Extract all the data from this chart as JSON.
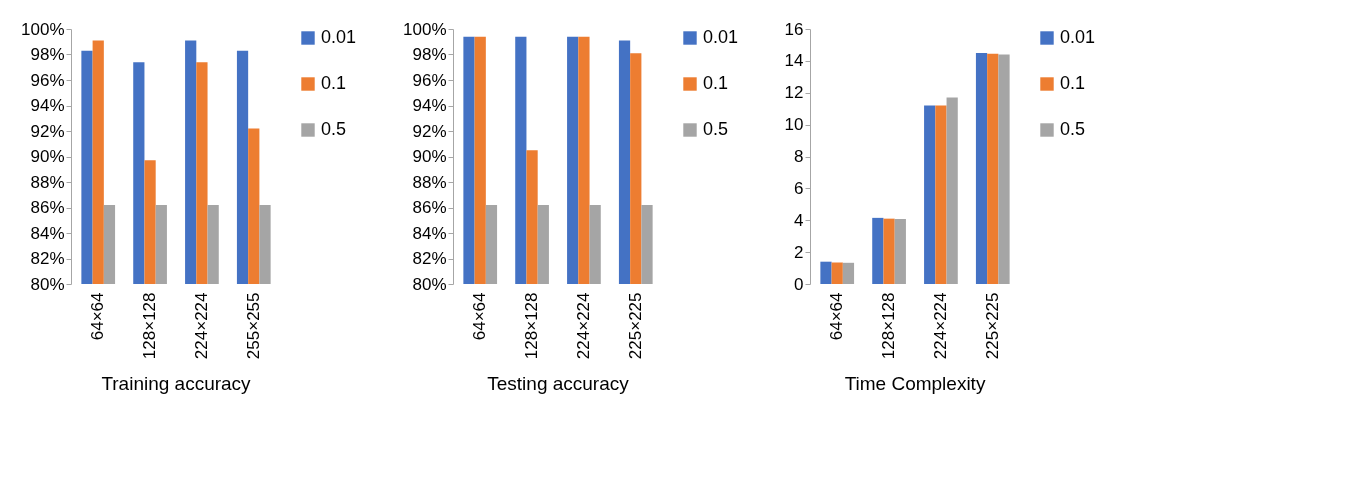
{
  "chart_data": [
    {
      "type": "bar",
      "title": "Training accuracy",
      "categories": [
        "64×64",
        "128×128",
        "224×224",
        "255×255"
      ],
      "series": [
        {
          "name": "0.01",
          "color": "#4472c4",
          "values": [
            98.3,
            97.4,
            99.1,
            98.3
          ]
        },
        {
          "name": "0.1",
          "color": "#ed7d31",
          "values": [
            99.1,
            89.7,
            97.4,
            92.2
          ]
        },
        {
          "name": "0.5",
          "color": "#a5a5a5",
          "values": [
            86.2,
            86.2,
            86.2,
            86.2
          ]
        }
      ],
      "ylim": [
        80,
        100
      ],
      "yticks": [
        {
          "value": 80,
          "label": "80%"
        },
        {
          "value": 82,
          "label": "82%"
        },
        {
          "value": 84,
          "label": "84%"
        },
        {
          "value": 86,
          "label": "86%"
        },
        {
          "value": 88,
          "label": "88%"
        },
        {
          "value": 90,
          "label": "90%"
        },
        {
          "value": 92,
          "label": "92%"
        },
        {
          "value": 94,
          "label": "94%"
        },
        {
          "value": 96,
          "label": "96%"
        },
        {
          "value": 98,
          "label": "98%"
        },
        {
          "value": 100,
          "label": "100%"
        }
      ],
      "grid": false,
      "legend": "right"
    },
    {
      "type": "bar",
      "title": "Testing accuracy",
      "categories": [
        "64×64",
        "128×128",
        "224×224",
        "225×225"
      ],
      "series": [
        {
          "name": "0.01",
          "color": "#4472c4",
          "values": [
            99.4,
            99.4,
            99.4,
            99.1
          ]
        },
        {
          "name": "0.1",
          "color": "#ed7d31",
          "values": [
            99.4,
            90.5,
            99.4,
            98.1
          ]
        },
        {
          "name": "0.5",
          "color": "#a5a5a5",
          "values": [
            86.2,
            86.2,
            86.2,
            86.2
          ]
        }
      ],
      "ylim": [
        80,
        100
      ],
      "yticks": [
        {
          "value": 80,
          "label": "80%"
        },
        {
          "value": 82,
          "label": "82%"
        },
        {
          "value": 84,
          "label": "84%"
        },
        {
          "value": 86,
          "label": "86%"
        },
        {
          "value": 88,
          "label": "88%"
        },
        {
          "value": 90,
          "label": "90%"
        },
        {
          "value": 92,
          "label": "92%"
        },
        {
          "value": 94,
          "label": "94%"
        },
        {
          "value": 96,
          "label": "96%"
        },
        {
          "value": 98,
          "label": "98%"
        },
        {
          "value": 100,
          "label": "100%"
        }
      ],
      "grid": false,
      "legend": "right"
    },
    {
      "type": "bar",
      "title": "Time Complexity",
      "categories": [
        "64×64",
        "128×128",
        "224×224",
        "225×225"
      ],
      "series": [
        {
          "name": "0.01",
          "color": "#4472c4",
          "values": [
            1.4,
            4.15,
            11.2,
            14.5
          ]
        },
        {
          "name": "0.1",
          "color": "#ed7d31",
          "values": [
            1.35,
            4.1,
            11.2,
            14.45
          ]
        },
        {
          "name": "0.5",
          "color": "#a5a5a5",
          "values": [
            1.33,
            4.08,
            11.7,
            14.4
          ]
        }
      ],
      "ylim": [
        0,
        16
      ],
      "yticks": [
        0,
        2,
        4,
        6,
        8,
        10,
        12,
        14,
        16
      ],
      "grid": false,
      "legend": "right"
    }
  ]
}
